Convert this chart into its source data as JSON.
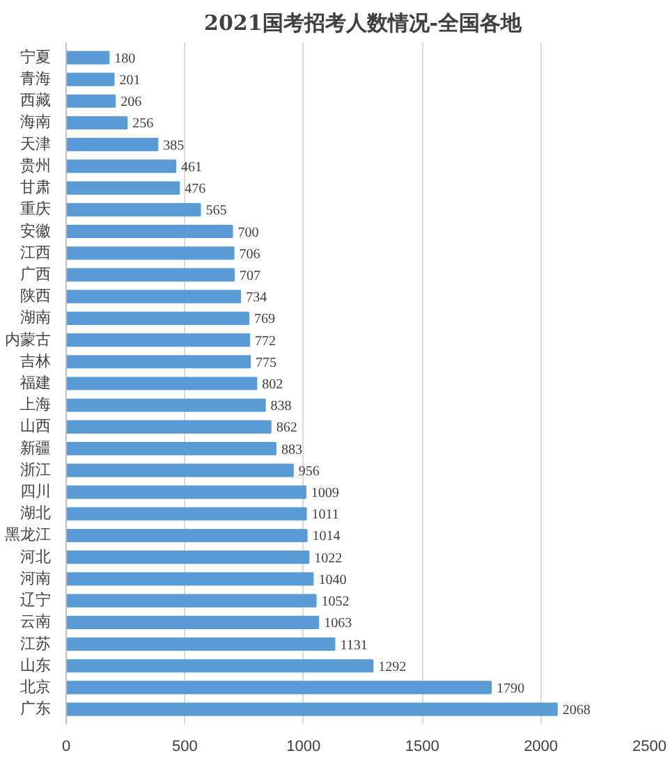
{
  "chart_data": {
    "type": "bar",
    "orientation": "horizontal",
    "title": "2021国考招考人数情况-全国各地",
    "categories": [
      "宁夏",
      "青海",
      "西藏",
      "海南",
      "天津",
      "贵州",
      "甘肃",
      "重庆",
      "安徽",
      "江西",
      "广西",
      "陕西",
      "湖南",
      "内蒙古",
      "吉林",
      "福建",
      "上海",
      "山西",
      "新疆",
      "浙江",
      "四川",
      "湖北",
      "黑龙江",
      "河北",
      "河南",
      "辽宁",
      "云南",
      "江苏",
      "山东",
      "北京",
      "广东"
    ],
    "values": [
      180,
      201,
      206,
      256,
      385,
      461,
      476,
      565,
      700,
      706,
      707,
      734,
      769,
      772,
      775,
      802,
      838,
      862,
      883,
      956,
      1009,
      1011,
      1014,
      1022,
      1040,
      1052,
      1063,
      1131,
      1292,
      1790,
      2068
    ],
    "color": "#5b9bd5",
    "xlim": [
      0,
      2500
    ],
    "xticks": [
      0,
      500,
      1000,
      1500,
      2000,
      2500
    ],
    "grid": "x",
    "data_labels": true
  }
}
